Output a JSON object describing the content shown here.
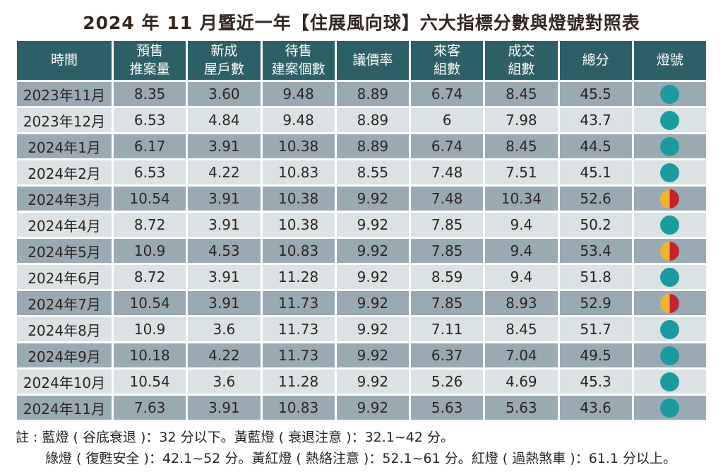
{
  "chart_data": {
    "type": "table",
    "title": "2024 年 11 月暨近一年【住展風向球】六大指標分數與燈號對照表",
    "columns": [
      {
        "id": "time",
        "lines": [
          "時間"
        ]
      },
      {
        "id": "presale-volume",
        "lines": [
          "預售",
          "推案量"
        ]
      },
      {
        "id": "new-house-units",
        "lines": [
          "新成",
          "屋戶數"
        ]
      },
      {
        "id": "for-sale-projects",
        "lines": [
          "待售",
          "建案個數"
        ]
      },
      {
        "id": "negotiation-rate",
        "lines": [
          "議價率"
        ]
      },
      {
        "id": "visitor-groups",
        "lines": [
          "來客",
          "組數"
        ]
      },
      {
        "id": "transaction-groups",
        "lines": [
          "成交",
          "組數"
        ]
      },
      {
        "id": "total-score",
        "lines": [
          "總分"
        ]
      },
      {
        "id": "signal",
        "lines": [
          "燈號"
        ]
      }
    ],
    "rows": [
      {
        "time": "2023年11月",
        "values": [
          "8.35",
          "3.60",
          "9.48",
          "8.89",
          "6.74",
          "8.45",
          "45.5"
        ],
        "light": "green"
      },
      {
        "time": "2023年12月",
        "values": [
          "6.53",
          "4.84",
          "9.48",
          "8.89",
          "6",
          "7.98",
          "43.7"
        ],
        "light": "green"
      },
      {
        "time": "2024年1月",
        "values": [
          "6.17",
          "3.91",
          "10.38",
          "8.89",
          "6.74",
          "8.45",
          "44.5"
        ],
        "light": "green"
      },
      {
        "time": "2024年2月",
        "values": [
          "6.53",
          "4.22",
          "10.83",
          "8.55",
          "7.48",
          "7.51",
          "45.1"
        ],
        "light": "green"
      },
      {
        "time": "2024年3月",
        "values": [
          "10.54",
          "3.91",
          "10.38",
          "9.92",
          "7.48",
          "10.34",
          "52.6"
        ],
        "light": "yellow_red"
      },
      {
        "time": "2024年4月",
        "values": [
          "8.72",
          "3.91",
          "10.38",
          "9.92",
          "7.85",
          "9.4",
          "50.2"
        ],
        "light": "green"
      },
      {
        "time": "2024年5月",
        "values": [
          "10.9",
          "4.53",
          "10.83",
          "9.92",
          "7.85",
          "9.4",
          "53.4"
        ],
        "light": "yellow_red"
      },
      {
        "time": "2024年6月",
        "values": [
          "8.72",
          "3.91",
          "11.28",
          "9.92",
          "8.59",
          "9.4",
          "51.8"
        ],
        "light": "green"
      },
      {
        "time": "2024年7月",
        "values": [
          "10.54",
          "3.91",
          "11.73",
          "9.92",
          "7.85",
          "8.93",
          "52.9"
        ],
        "light": "yellow_red"
      },
      {
        "time": "2024年8月",
        "values": [
          "10.9",
          "3.6",
          "11.73",
          "9.92",
          "7.11",
          "8.45",
          "51.7"
        ],
        "light": "green"
      },
      {
        "time": "2024年9月",
        "values": [
          "10.18",
          "4.22",
          "11.73",
          "9.92",
          "6.37",
          "7.04",
          "49.5"
        ],
        "light": "green"
      },
      {
        "time": "2024年10月",
        "values": [
          "10.54",
          "3.6",
          "11.28",
          "9.92",
          "5.26",
          "4.69",
          "45.3"
        ],
        "light": "green"
      },
      {
        "time": "2024年11月",
        "values": [
          "7.63",
          "3.91",
          "10.83",
          "9.92",
          "5.63",
          "5.63",
          "43.6"
        ],
        "light": "green"
      }
    ],
    "notes": {
      "line1": "註 : 藍燈 ( 谷底衰退 )：32 分以下。黃藍燈 ( 衰退注意 )：32.1~42 分。",
      "line2": "綠燈 ( 復甦安全 )：42.1~52 分。黃紅燈 ( 熱絡注意 )：52.1~61 分。紅燈 ( 過熱煞車 )：61.1 分以上。"
    }
  },
  "colors": {
    "header_bg": "#2d5f66",
    "row_dark": "#9aaab2",
    "row_light": "#dbe2e4",
    "light_green": "#1c9aa0",
    "light_yellow": "#f1b32f",
    "light_red": "#c3242b",
    "title_text": "#33261f",
    "body_text": "#2b2522"
  }
}
